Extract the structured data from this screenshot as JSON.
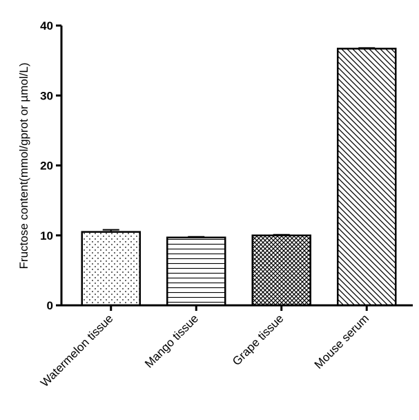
{
  "chart_data": {
    "type": "bar",
    "title": "",
    "xlabel": "",
    "ylabel": "Fructose content(mmol/gprot or µmol/L)",
    "categories": [
      "Watermelon tissue",
      "Mango tissue",
      "Grape tissue",
      "Mouse serum"
    ],
    "values": [
      10.5,
      9.7,
      10.0,
      36.7
    ],
    "errors": [
      0.3,
      0.1,
      0.1,
      0.1
    ],
    "fill_patterns": [
      "dots",
      "horizontal-lines",
      "cross-hatch",
      "diagonal-lines"
    ],
    "ylim": [
      0,
      40
    ],
    "yticks": [
      0,
      10,
      20,
      30,
      40
    ],
    "ytick_labels": [
      "0",
      "10",
      "20",
      "30",
      "40"
    ],
    "grid": false,
    "colors": {
      "bar_stroke": "#000000",
      "background": "#ffffff"
    }
  }
}
